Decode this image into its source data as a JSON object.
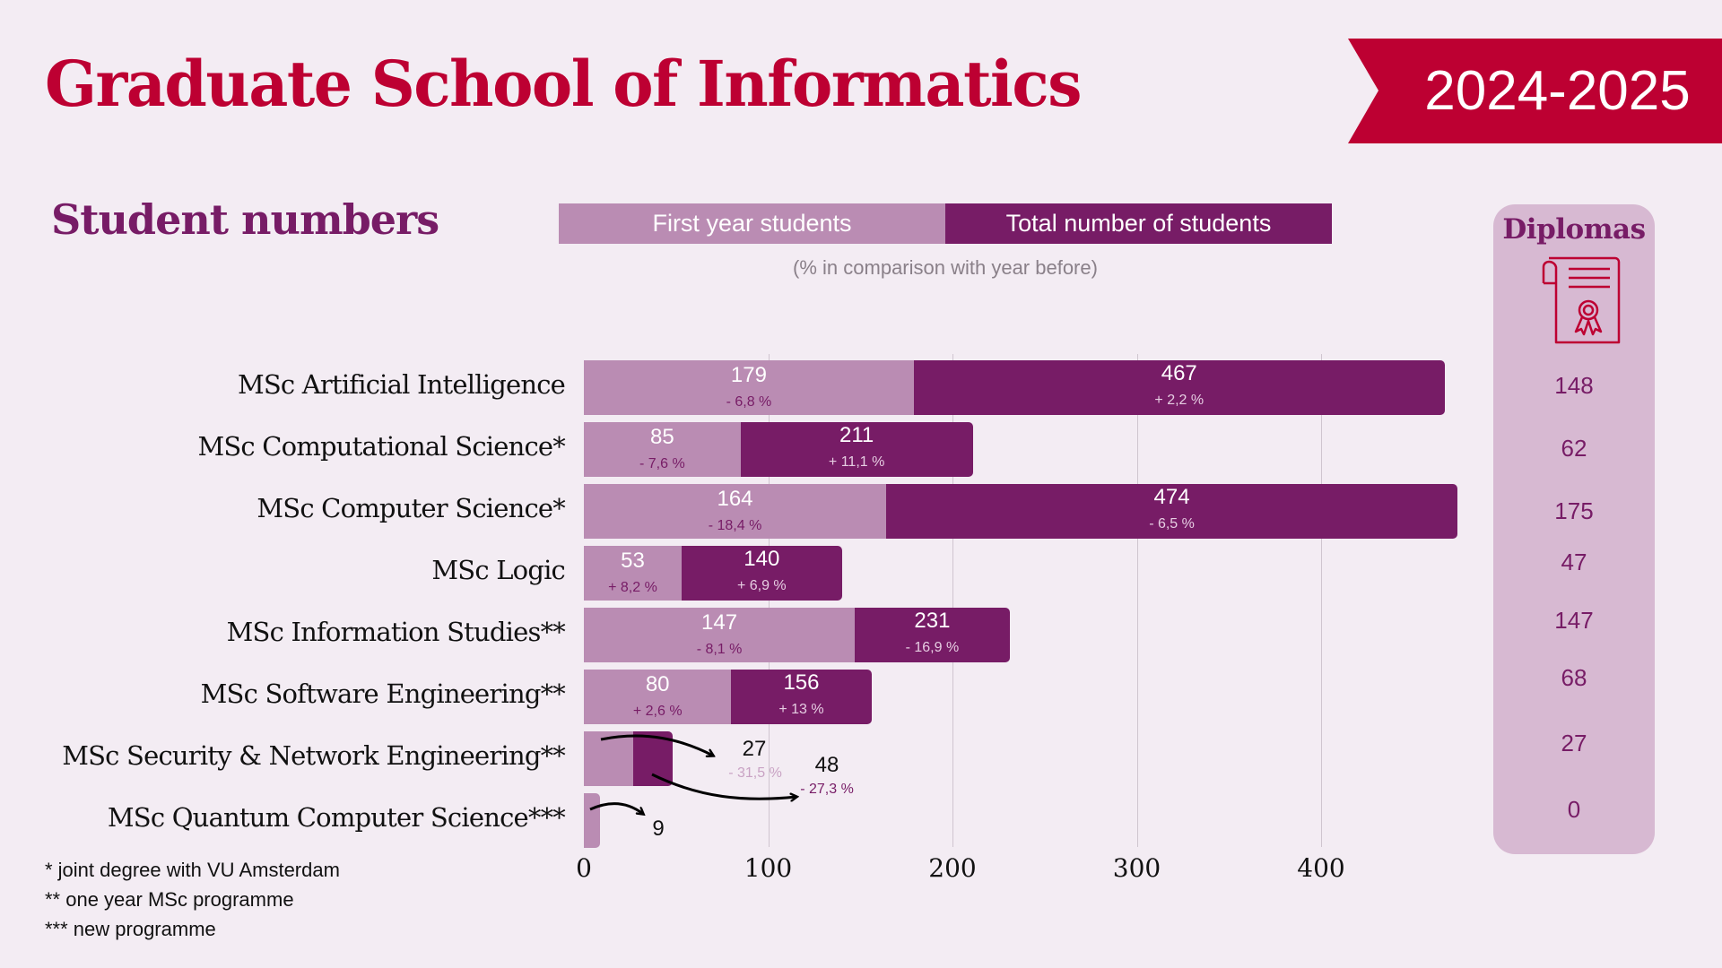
{
  "header": {
    "title": "Graduate School of Informatics",
    "year_badge": "2024-2025"
  },
  "section": {
    "title": "Student numbers"
  },
  "legend": {
    "first_year": "First year students",
    "total": "Total number of students",
    "note": "(% in comparison with year before)"
  },
  "colors": {
    "title_red": "#bd0032",
    "first_year": "#ba8cb3",
    "total": "#771c66",
    "diplomas_panel": "#d7b9d2",
    "background": "#f3ecf3"
  },
  "chart_data": {
    "type": "bar",
    "orientation": "horizontal",
    "title": "Student numbers",
    "xlabel": "",
    "ylabel": "",
    "xlim": [
      0,
      480
    ],
    "xticks": [
      0,
      100,
      200,
      300,
      400
    ],
    "xtick_labels": [
      "0",
      "100",
      "200",
      "300",
      "400"
    ],
    "grid": "vertical",
    "legend": [
      "First year students",
      "Total number of students"
    ],
    "categories": [
      "MSc Artificial Intelligence",
      "MSc Computational Science*",
      "MSc Computer Science*",
      "MSc Logic",
      "MSc Information Studies**",
      "MSc Software Engineering**",
      "MSc Security & Network Engineering**",
      "MSc Quantum Computer Science***"
    ],
    "series": [
      {
        "name": "First year students",
        "values": [
          179,
          85,
          164,
          53,
          147,
          80,
          27,
          9
        ],
        "labels": [
          "179",
          "85",
          "164",
          "53",
          "147",
          "80",
          "27",
          "9"
        ],
        "change": [
          "- 6,8 %",
          "- 7,6 %",
          "- 18,4 %",
          "+ 8,2 %",
          "- 8,1 %",
          "+ 2,6 %",
          "- 31,5 %",
          ""
        ]
      },
      {
        "name": "Total number of students",
        "values": [
          467,
          211,
          474,
          140,
          231,
          156,
          48,
          null
        ],
        "labels": [
          "467",
          "211",
          "474",
          "140",
          "231",
          "156",
          "48",
          ""
        ],
        "change": [
          "+ 2,2 %",
          "+ 11,1 %",
          "- 6,5 %",
          "+ 6,9 %",
          "- 16,9 %",
          "+ 13 %",
          "- 27,3 %",
          ""
        ]
      }
    ],
    "diplomas": {
      "title": "Diplomas",
      "icon": "diploma-scroll-icon",
      "values": [
        "148",
        "62",
        "175",
        "47",
        "147",
        "68",
        "27",
        "0"
      ]
    }
  },
  "footnotes": [
    "* joint degree with VU Amsterdam",
    "** one year MSc programme",
    "*** new programme"
  ]
}
